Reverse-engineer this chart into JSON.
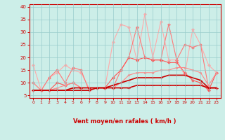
{
  "x": [
    0,
    1,
    2,
    3,
    4,
    5,
    6,
    7,
    8,
    9,
    10,
    11,
    12,
    13,
    14,
    15,
    16,
    17,
    18,
    19,
    20,
    21,
    22,
    23
  ],
  "series": [
    {
      "color": "#ffaaaa",
      "marker": "D",
      "markersize": 2.0,
      "linewidth": 0.8,
      "y": [
        17,
        7,
        12,
        14,
        17,
        15,
        14,
        8,
        8,
        8,
        26,
        33,
        32,
        19,
        37,
        20,
        34,
        19,
        19,
        13,
        31,
        25,
        17,
        14
      ]
    },
    {
      "color": "#ff7777",
      "marker": "D",
      "markersize": 2.0,
      "linewidth": 0.8,
      "y": [
        10,
        7,
        12,
        15,
        10,
        16,
        15,
        7,
        8,
        8,
        8,
        15,
        20,
        32,
        20,
        19,
        19,
        33,
        19,
        25,
        24,
        25,
        8,
        8
      ]
    },
    {
      "color": "#ff5555",
      "marker": "D",
      "markersize": 2.0,
      "linewidth": 0.8,
      "y": [
        7,
        7,
        7,
        10,
        9,
        10,
        8,
        8,
        8,
        8,
        12,
        15,
        20,
        19,
        20,
        19,
        19,
        18,
        18,
        14,
        11,
        10,
        7,
        14
      ]
    },
    {
      "color": "#ff8888",
      "marker": "D",
      "markersize": 1.5,
      "linewidth": 0.8,
      "y": [
        7,
        7,
        7,
        8,
        9,
        10,
        8,
        8,
        8,
        8,
        8,
        10,
        13,
        14,
        14,
        14,
        15,
        15,
        16,
        16,
        15,
        14,
        9,
        14
      ]
    },
    {
      "color": "#cc0000",
      "marker": "+",
      "markersize": 3.0,
      "linewidth": 1.2,
      "y": [
        7,
        7,
        7,
        7,
        7,
        8,
        8,
        8,
        8,
        8,
        9,
        10,
        11,
        12,
        12,
        12,
        12,
        13,
        13,
        13,
        12,
        11,
        8,
        8
      ]
    },
    {
      "color": "#cc0000",
      "marker": "+",
      "markersize": 3.0,
      "linewidth": 1.2,
      "y": [
        7,
        7,
        7,
        7,
        7,
        7,
        7,
        7,
        8,
        8,
        8,
        8,
        8,
        9,
        9,
        9,
        9,
        9,
        9,
        9,
        9,
        9,
        8,
        8
      ]
    }
  ],
  "xlabel": "Vent moyen/en rafales ( km/h )",
  "xlim": [
    -0.5,
    23.5
  ],
  "ylim": [
    4,
    41
  ],
  "yticks": [
    5,
    10,
    15,
    20,
    25,
    30,
    35,
    40
  ],
  "xticks": [
    0,
    1,
    2,
    3,
    4,
    5,
    6,
    7,
    8,
    9,
    10,
    11,
    12,
    13,
    14,
    15,
    16,
    17,
    18,
    19,
    20,
    21,
    22,
    23
  ],
  "bg_color": "#cceee8",
  "grid_color": "#99cccc",
  "text_color": "#cc0000",
  "axis_color": "#cc0000",
  "arrow_angles_deg": [
    0,
    20,
    0,
    30,
    0,
    0,
    45,
    45,
    45,
    45,
    45,
    45,
    45,
    45,
    45,
    45,
    45,
    45,
    45,
    0,
    45,
    90,
    90,
    90
  ]
}
